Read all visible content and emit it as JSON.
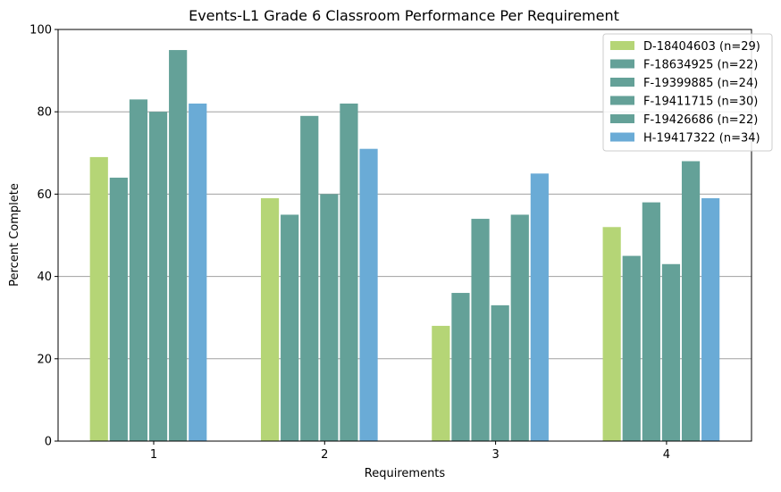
{
  "chart_data": {
    "type": "bar",
    "title": "Events-L1 Grade 6 Classroom Performance Per Requirement",
    "xlabel": "Requirements",
    "ylabel": "Percent Complete",
    "categories": [
      "1",
      "2",
      "3",
      "4"
    ],
    "ylim": [
      0,
      100
    ],
    "yticks": [
      0,
      20,
      40,
      60,
      80,
      100
    ],
    "grid": "horizontal",
    "legend_position": "top-right",
    "series": [
      {
        "name": "D-18404603 (n=29)",
        "color": "#b5d576",
        "values": [
          69,
          59,
          28,
          52
        ]
      },
      {
        "name": "F-18634925 (n=22)",
        "color": "#64a198",
        "values": [
          64,
          55,
          36,
          45
        ]
      },
      {
        "name": "F-19399885 (n=24)",
        "color": "#64a198",
        "values": [
          83,
          79,
          54,
          58
        ]
      },
      {
        "name": "F-19411715 (n=30)",
        "color": "#64a198",
        "values": [
          80,
          60,
          33,
          43
        ]
      },
      {
        "name": "F-19426686 (n=22)",
        "color": "#64a198",
        "values": [
          95,
          82,
          55,
          68
        ]
      },
      {
        "name": "H-19417322 (n=34)",
        "color": "#6aabd6",
        "values": [
          82,
          71,
          65,
          59
        ]
      }
    ]
  }
}
